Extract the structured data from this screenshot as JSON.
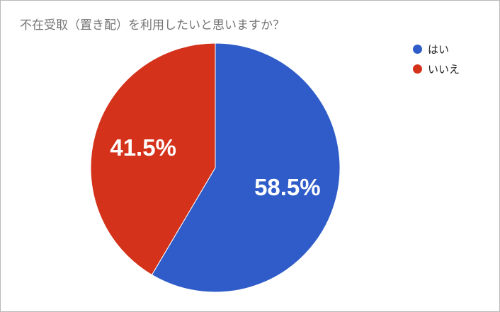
{
  "chart_data": {
    "type": "pie",
    "title": "不在受取（置き配）を利用したいと思いますか？",
    "categories": [
      "はい",
      "いいえ"
    ],
    "values": [
      58.5,
      41.5
    ],
    "value_labels": [
      "58.5%",
      "41.5%"
    ],
    "colors": [
      "#2f5cc8",
      "#d4321b"
    ],
    "legend_position": "top-right",
    "start_angle": "12 o'clock, clockwise"
  }
}
